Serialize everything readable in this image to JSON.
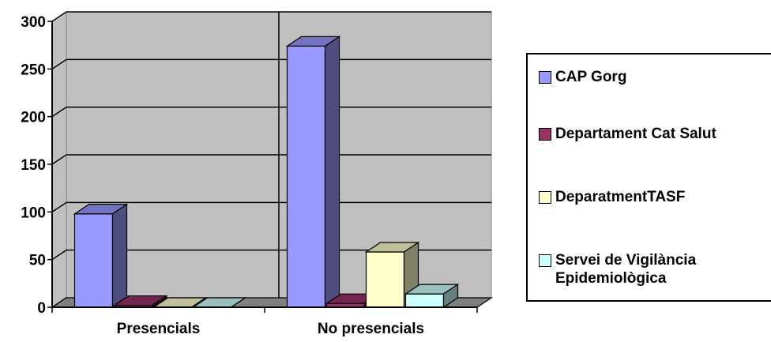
{
  "chart_data": {
    "type": "bar",
    "categories": [
      "Presencials",
      "No presencials"
    ],
    "series": [
      {
        "name": "CAP Gorg",
        "values": [
          98,
          274
        ],
        "color": "#9999ff"
      },
      {
        "name": "Departament Cat Salut",
        "values": [
          2,
          4
        ],
        "color": "#993366"
      },
      {
        "name": "DeparatmentTASF",
        "values": [
          0,
          58
        ],
        "color": "#ffffcc"
      },
      {
        "name": "Servei de Vigilància\nEpidemiològica",
        "values": [
          0,
          14
        ],
        "color": "#ccffff"
      }
    ],
    "yticks": [
      "0",
      "50",
      "100",
      "150",
      "200",
      "250",
      "300"
    ],
    "ylim": [
      0,
      300
    ],
    "grid": true,
    "legend_position": "right",
    "title": "",
    "xlabel": "",
    "ylabel": ""
  }
}
